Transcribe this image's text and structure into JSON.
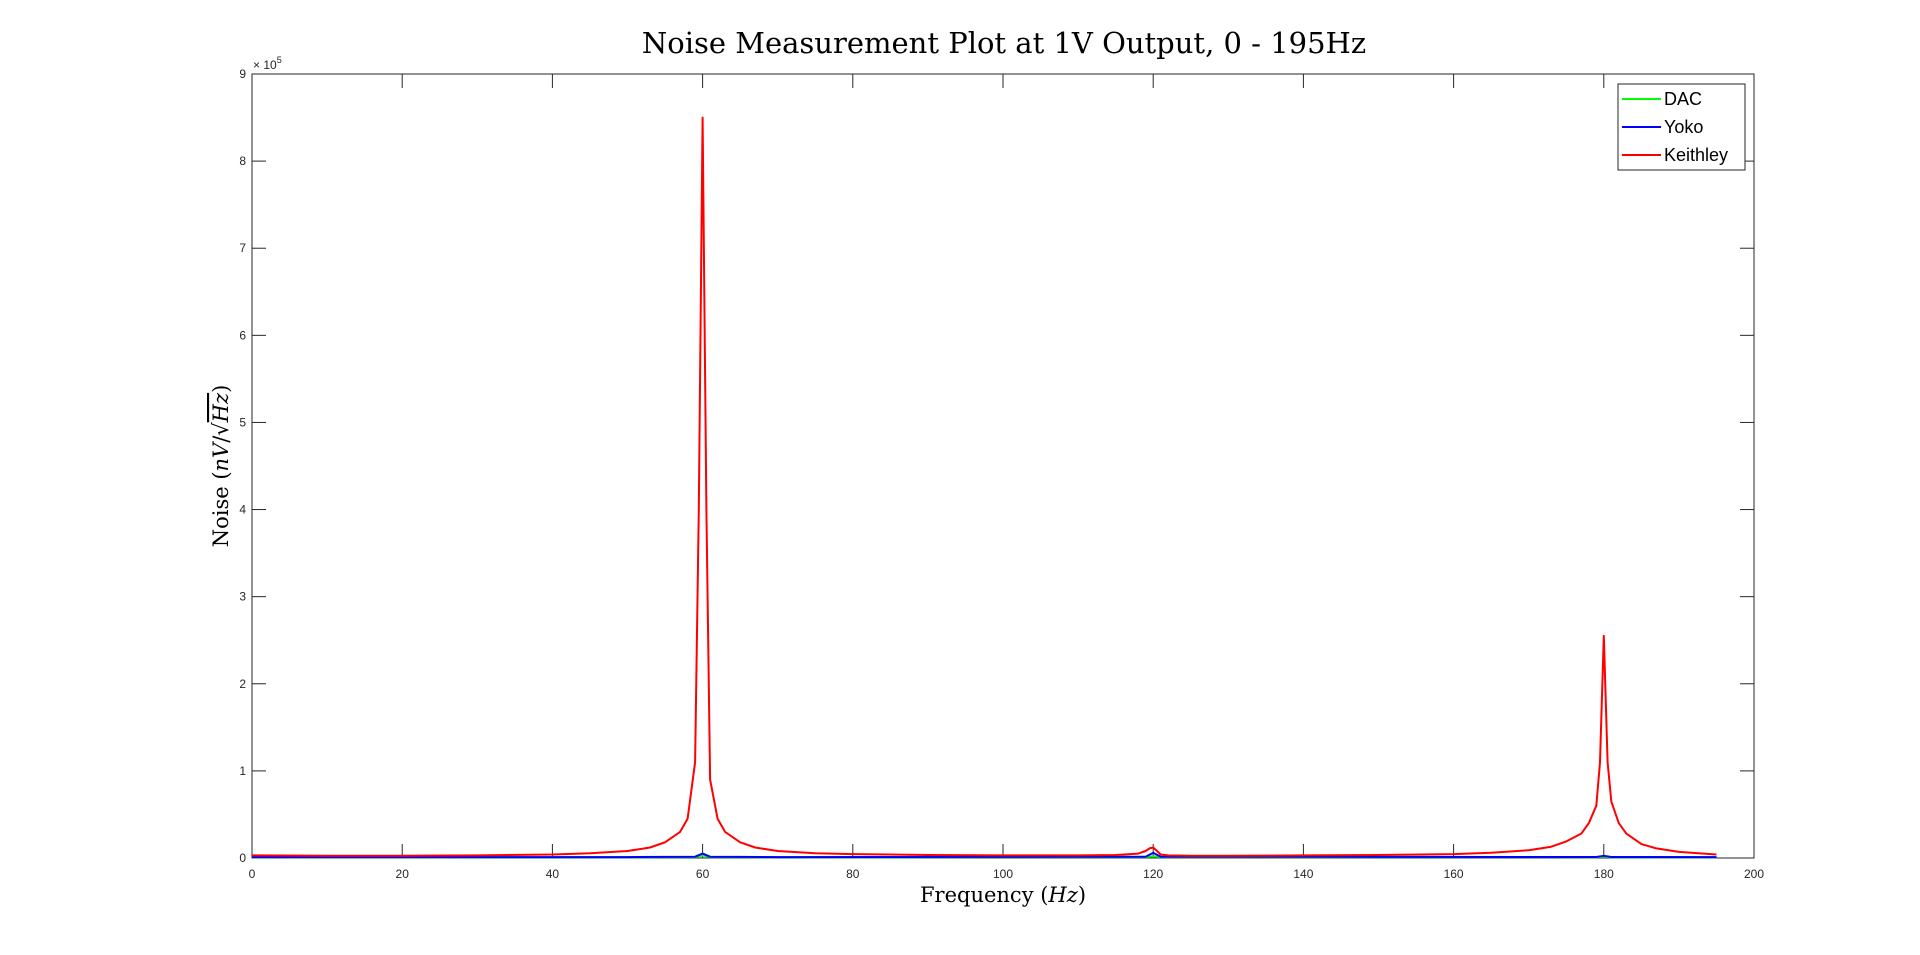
{
  "chart_data": {
    "type": "line",
    "title": "Noise Measurement Plot at 1V Output, 0 - 195Hz",
    "xlabel": {
      "pre": "Frequency (",
      "math": "Hz",
      "post": ")"
    },
    "ylabel": {
      "pre": "Noise (",
      "math1": "nV",
      "slash": "/",
      "math2": "Hz",
      "post": ")"
    },
    "y_exponent": {
      "base": "× 10",
      "power": "5"
    },
    "xlim": [
      0,
      200
    ],
    "ylim": [
      0,
      900000
    ],
    "xticks": [
      "0",
      "20",
      "40",
      "60",
      "80",
      "100",
      "120",
      "140",
      "160",
      "180",
      "200"
    ],
    "yticks": [
      "0",
      "1",
      "2",
      "3",
      "4",
      "5",
      "6",
      "7",
      "8",
      "9"
    ],
    "grid": false,
    "legend_position": "top-right",
    "series": [
      {
        "name": "DAC",
        "color": "#00ff00",
        "x": [
          0,
          50,
          59,
          60,
          61,
          70,
          119,
          120,
          121,
          179,
          180,
          181,
          195
        ],
        "y": [
          800,
          800,
          1000,
          3000,
          1000,
          800,
          1000,
          2000,
          1000,
          900,
          1500,
          900,
          800
        ]
      },
      {
        "name": "Yoko",
        "color": "#0000ff",
        "x": [
          0,
          50,
          59,
          60,
          61,
          70,
          119,
          120,
          121,
          179,
          180,
          181,
          195
        ],
        "y": [
          1000,
          1000,
          1500,
          5000,
          1500,
          1000,
          1500,
          6000,
          1500,
          1200,
          2500,
          1200,
          1000
        ]
      },
      {
        "name": "Keithley",
        "color": "#ff0000",
        "x": [
          0,
          10,
          20,
          30,
          40,
          45,
          50,
          53,
          55,
          57,
          58,
          59,
          59.5,
          60,
          60.5,
          61,
          62,
          63,
          65,
          67,
          70,
          75,
          80,
          90,
          100,
          110,
          115,
          118,
          119,
          119.5,
          120,
          120.5,
          121,
          122,
          125,
          130,
          140,
          150,
          160,
          165,
          170,
          173,
          175,
          177,
          178,
          179,
          179.5,
          180,
          180.5,
          181,
          182,
          183,
          185,
          187,
          190,
          195
        ],
        "y": [
          3000,
          2500,
          2500,
          3000,
          4000,
          5500,
          8000,
          12000,
          18000,
          30000,
          45000,
          110000,
          400000,
          850000,
          400000,
          90000,
          45000,
          30000,
          18000,
          12000,
          8000,
          5500,
          4500,
          3500,
          3000,
          3000,
          3500,
          5000,
          8000,
          11000,
          12000,
          8000,
          4000,
          3000,
          2500,
          2500,
          3000,
          3500,
          4500,
          6000,
          9000,
          13000,
          19000,
          28000,
          40000,
          60000,
          110000,
          255000,
          110000,
          65000,
          40000,
          28000,
          16000,
          11000,
          7000,
          4000
        ]
      }
    ]
  }
}
